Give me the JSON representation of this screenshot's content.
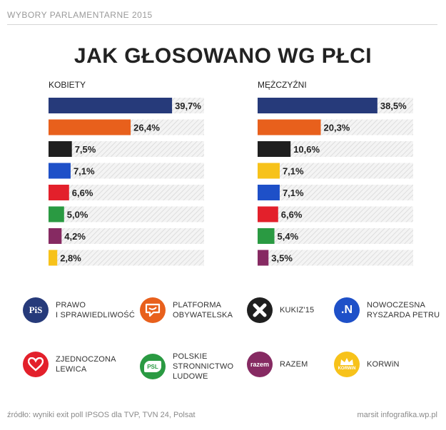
{
  "header": "WYBORY PARLAMENTARNE 2015",
  "title": "JAK GŁOSOWANO WG PŁCI",
  "chart_data": [
    {
      "type": "bar",
      "label": "KOBIETY",
      "xlim": [
        0,
        50
      ],
      "bars": [
        {
          "party": "PiS",
          "value": 39.7,
          "text": "39,7%",
          "color": "#263a7a"
        },
        {
          "party": "PO",
          "value": 26.4,
          "text": "26,4%",
          "color": "#e8601c"
        },
        {
          "party": "Kukiz'15",
          "value": 7.5,
          "text": "7,5%",
          "color": "#1f1f1f"
        },
        {
          "party": ".Nowoczesna",
          "value": 7.1,
          "text": "7,1%",
          "color": "#1e50c8"
        },
        {
          "party": "ZL",
          "value": 6.6,
          "text": "6,6%",
          "color": "#e3202b"
        },
        {
          "party": "PSL",
          "value": 5.0,
          "text": "5,0%",
          "color": "#2a9a42"
        },
        {
          "party": "Razem",
          "value": 4.2,
          "text": "4,2%",
          "color": "#862a62"
        },
        {
          "party": "KORWiN",
          "value": 2.8,
          "text": "2,8%",
          "color": "#f7c21a"
        }
      ]
    },
    {
      "type": "bar",
      "label": "MĘŻCZYŹNI",
      "xlim": [
        0,
        50
      ],
      "bars": [
        {
          "party": "PiS",
          "value": 38.5,
          "text": "38,5%",
          "color": "#263a7a"
        },
        {
          "party": "PO",
          "value": 20.3,
          "text": "20,3%",
          "color": "#e8601c"
        },
        {
          "party": "Kukiz'15",
          "value": 10.6,
          "text": "10,6%",
          "color": "#1f1f1f"
        },
        {
          "party": "KORWiN",
          "value": 7.1,
          "text": "7,1%",
          "color": "#f7c21a"
        },
        {
          "party": ".Nowoczesna",
          "value": 7.1,
          "text": "7,1%",
          "color": "#1e50c8"
        },
        {
          "party": "ZL",
          "value": 6.6,
          "text": "6,6%",
          "color": "#e3202b"
        },
        {
          "party": "PSL",
          "value": 5.4,
          "text": "5,4%",
          "color": "#2a9a42"
        },
        {
          "party": "Razem",
          "value": 3.5,
          "text": "3,5%",
          "color": "#862a62"
        }
      ]
    }
  ],
  "legend": [
    {
      "icon": "pis-logo-icon",
      "icon_text": "PiS",
      "color": "#263a7a",
      "text": "PRAWO\nI SPRAWIEDLIWOŚĆ"
    },
    {
      "icon": "po-logo-icon",
      "color": "#e8601c",
      "text": "PLATFORMA\nOBYWATELSKA"
    },
    {
      "icon": "kukiz-logo-icon",
      "color": "#1f1f1f",
      "text": "KUKIZ'15"
    },
    {
      "icon": "nowoczesna-logo-icon",
      "icon_text": ".N",
      "color": "#1e50c8",
      "text": "NOWOCZESNA\nRYSZARDA PETRU"
    },
    {
      "icon": "zl-heart-icon",
      "color": "#e3202b",
      "text": "ZJEDNOCZONA\nLEWICA"
    },
    {
      "icon": "psl-logo-icon",
      "icon_text": "PSL",
      "color": "#2a9a42",
      "text": "POLSKIE\nSTRONNICTWO\nLUDOWE"
    },
    {
      "icon": "razem-logo-icon",
      "icon_text": "razem",
      "color": "#862a62",
      "text": "RAZEM"
    },
    {
      "icon": "korwin-crown-icon",
      "icon_text": "KORWiN",
      "color": "#f7c21a",
      "text": "KORWiN"
    }
  ],
  "footer": {
    "source": "źródło: wyniki exit poll IPSOS dla TVP, TVN 24, Polsat",
    "credit": "marsit infografika.wp.pl"
  }
}
